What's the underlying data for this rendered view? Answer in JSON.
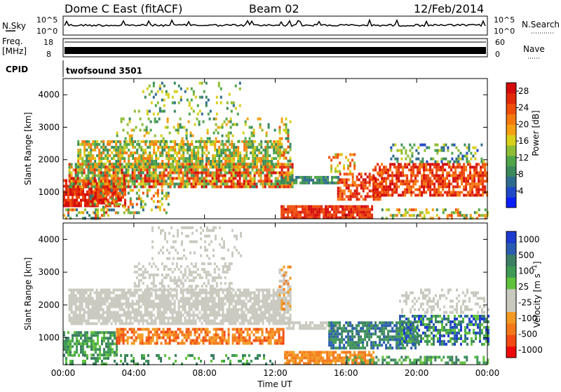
{
  "header": {
    "station": "Dome C East (fitACF)",
    "beam": "Beam 02",
    "date": "12/Feb/2014"
  },
  "top_panels": {
    "nsky_label": "N.Sky",
    "nsky_tick_top": "10^5",
    "nsky_tick_bottom": "10^0",
    "nsearch_label": "N.Search",
    "nsearch_tick_top": "10^5",
    "nsearch_tick_bottom": "10^0",
    "freq_label_line1": "Freq.",
    "freq_label_line2": "[MHz]",
    "freq_tick_top": "18",
    "freq_tick_bottom": "8",
    "nave_label": "Nave",
    "nave_tick_top": "60",
    "nave_tick_bottom": "0",
    "cpid_label": "CPID",
    "cpid_text": "twofsound 3501"
  },
  "colors": {
    "power_scale": [
      "#0a1eff",
      "#1f49c8",
      "#2f6b8f",
      "#3b8a5c",
      "#4fa64a",
      "#8fbd35",
      "#d8d01b",
      "#f5a012",
      "#f57a10",
      "#ef4f0d",
      "#e22a0b",
      "#d40b0b"
    ],
    "velocity_scale": [
      "#ee0a0a",
      "#f24a12",
      "#f3781a",
      "#f49a22",
      "#c9c9bf",
      "#c9c9bf",
      "#60c23b",
      "#3f9a55",
      "#3c7f64",
      "#2a5db1",
      "#1e3bd0"
    ]
  },
  "chart_data": [
    {
      "type": "heatmap",
      "name": "Power",
      "ylabel": "Slant Range [km]",
      "xlabel": "",
      "x_ticks": [
        "00:00",
        "04:00",
        "08:00",
        "12:00",
        "16:00",
        "20:00",
        "00:00"
      ],
      "y_ticks": [
        "1000",
        "2000",
        "3000",
        "4000"
      ],
      "ylim": [
        180,
        4500
      ],
      "colorbar_label": "Power [dB]",
      "colorbar_ticks": [
        "4",
        "8",
        "12",
        "16",
        "20",
        "24",
        "28"
      ],
      "colorbar_range": [
        0,
        30
      ]
    },
    {
      "type": "heatmap",
      "name": "Velocity",
      "ylabel": "Slant Range [km]",
      "xlabel": "Time UT",
      "x_ticks": [
        "00:00",
        "04:00",
        "08:00",
        "12:00",
        "16:00",
        "20:00",
        "00:00"
      ],
      "y_ticks": [
        "1000",
        "2000",
        "3000",
        "4000"
      ],
      "ylim": [
        180,
        4500
      ],
      "colorbar_label": "Velocity [m s^-1]",
      "colorbar_ticks": [
        "1000",
        "500",
        "100",
        "25",
        "-25",
        "-100",
        "-500",
        "-1000"
      ]
    }
  ]
}
